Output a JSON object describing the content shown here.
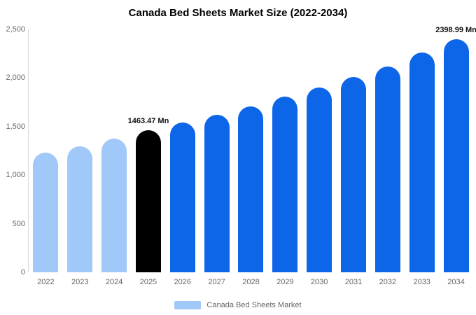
{
  "colors": {
    "background": "#ffffff",
    "light_blue": "#a0c8f8",
    "highlight_black": "#000000",
    "blue": "#0d65e8",
    "axis_text": "#666666",
    "axis_line": "#d9d9d9",
    "title_text": "#000000"
  },
  "chart_data": {
    "type": "bar",
    "title": "Canada Bed Sheets Market Size (2022-2034)",
    "categories": [
      "2022",
      "2023",
      "2024",
      "2025",
      "2026",
      "2027",
      "2028",
      "2029",
      "2030",
      "2031",
      "2032",
      "2033",
      "2034"
    ],
    "values": [
      1230,
      1300,
      1375,
      1463.47,
      1540,
      1620,
      1705,
      1805,
      1905,
      2010,
      2120,
      2260,
      2398.99
    ],
    "bar_colors": [
      "#a0c8f8",
      "#a0c8f8",
      "#a0c8f8",
      "#000000",
      "#0d65e8",
      "#0d65e8",
      "#0d65e8",
      "#0d65e8",
      "#0d65e8",
      "#0d65e8",
      "#0d65e8",
      "#0d65e8",
      "#0d65e8"
    ],
    "data_labels": [
      "",
      "",
      "",
      "1463.47 Mn",
      "",
      "",
      "",
      "",
      "",
      "",
      "",
      "",
      "2398.99 Mn"
    ],
    "xlabel": "",
    "ylabel": "",
    "ylim": [
      0,
      2500
    ],
    "yticks": [
      0,
      500,
      1000,
      1500,
      2000,
      2500
    ],
    "ytick_labels": [
      "0",
      "500",
      "1,000",
      "1,500",
      "2,000",
      "2,500"
    ],
    "grid": false,
    "legend_position": "bottom",
    "legend": [
      {
        "label": "Canada Bed Sheets Market",
        "color": "#a0c8f8"
      }
    ]
  }
}
